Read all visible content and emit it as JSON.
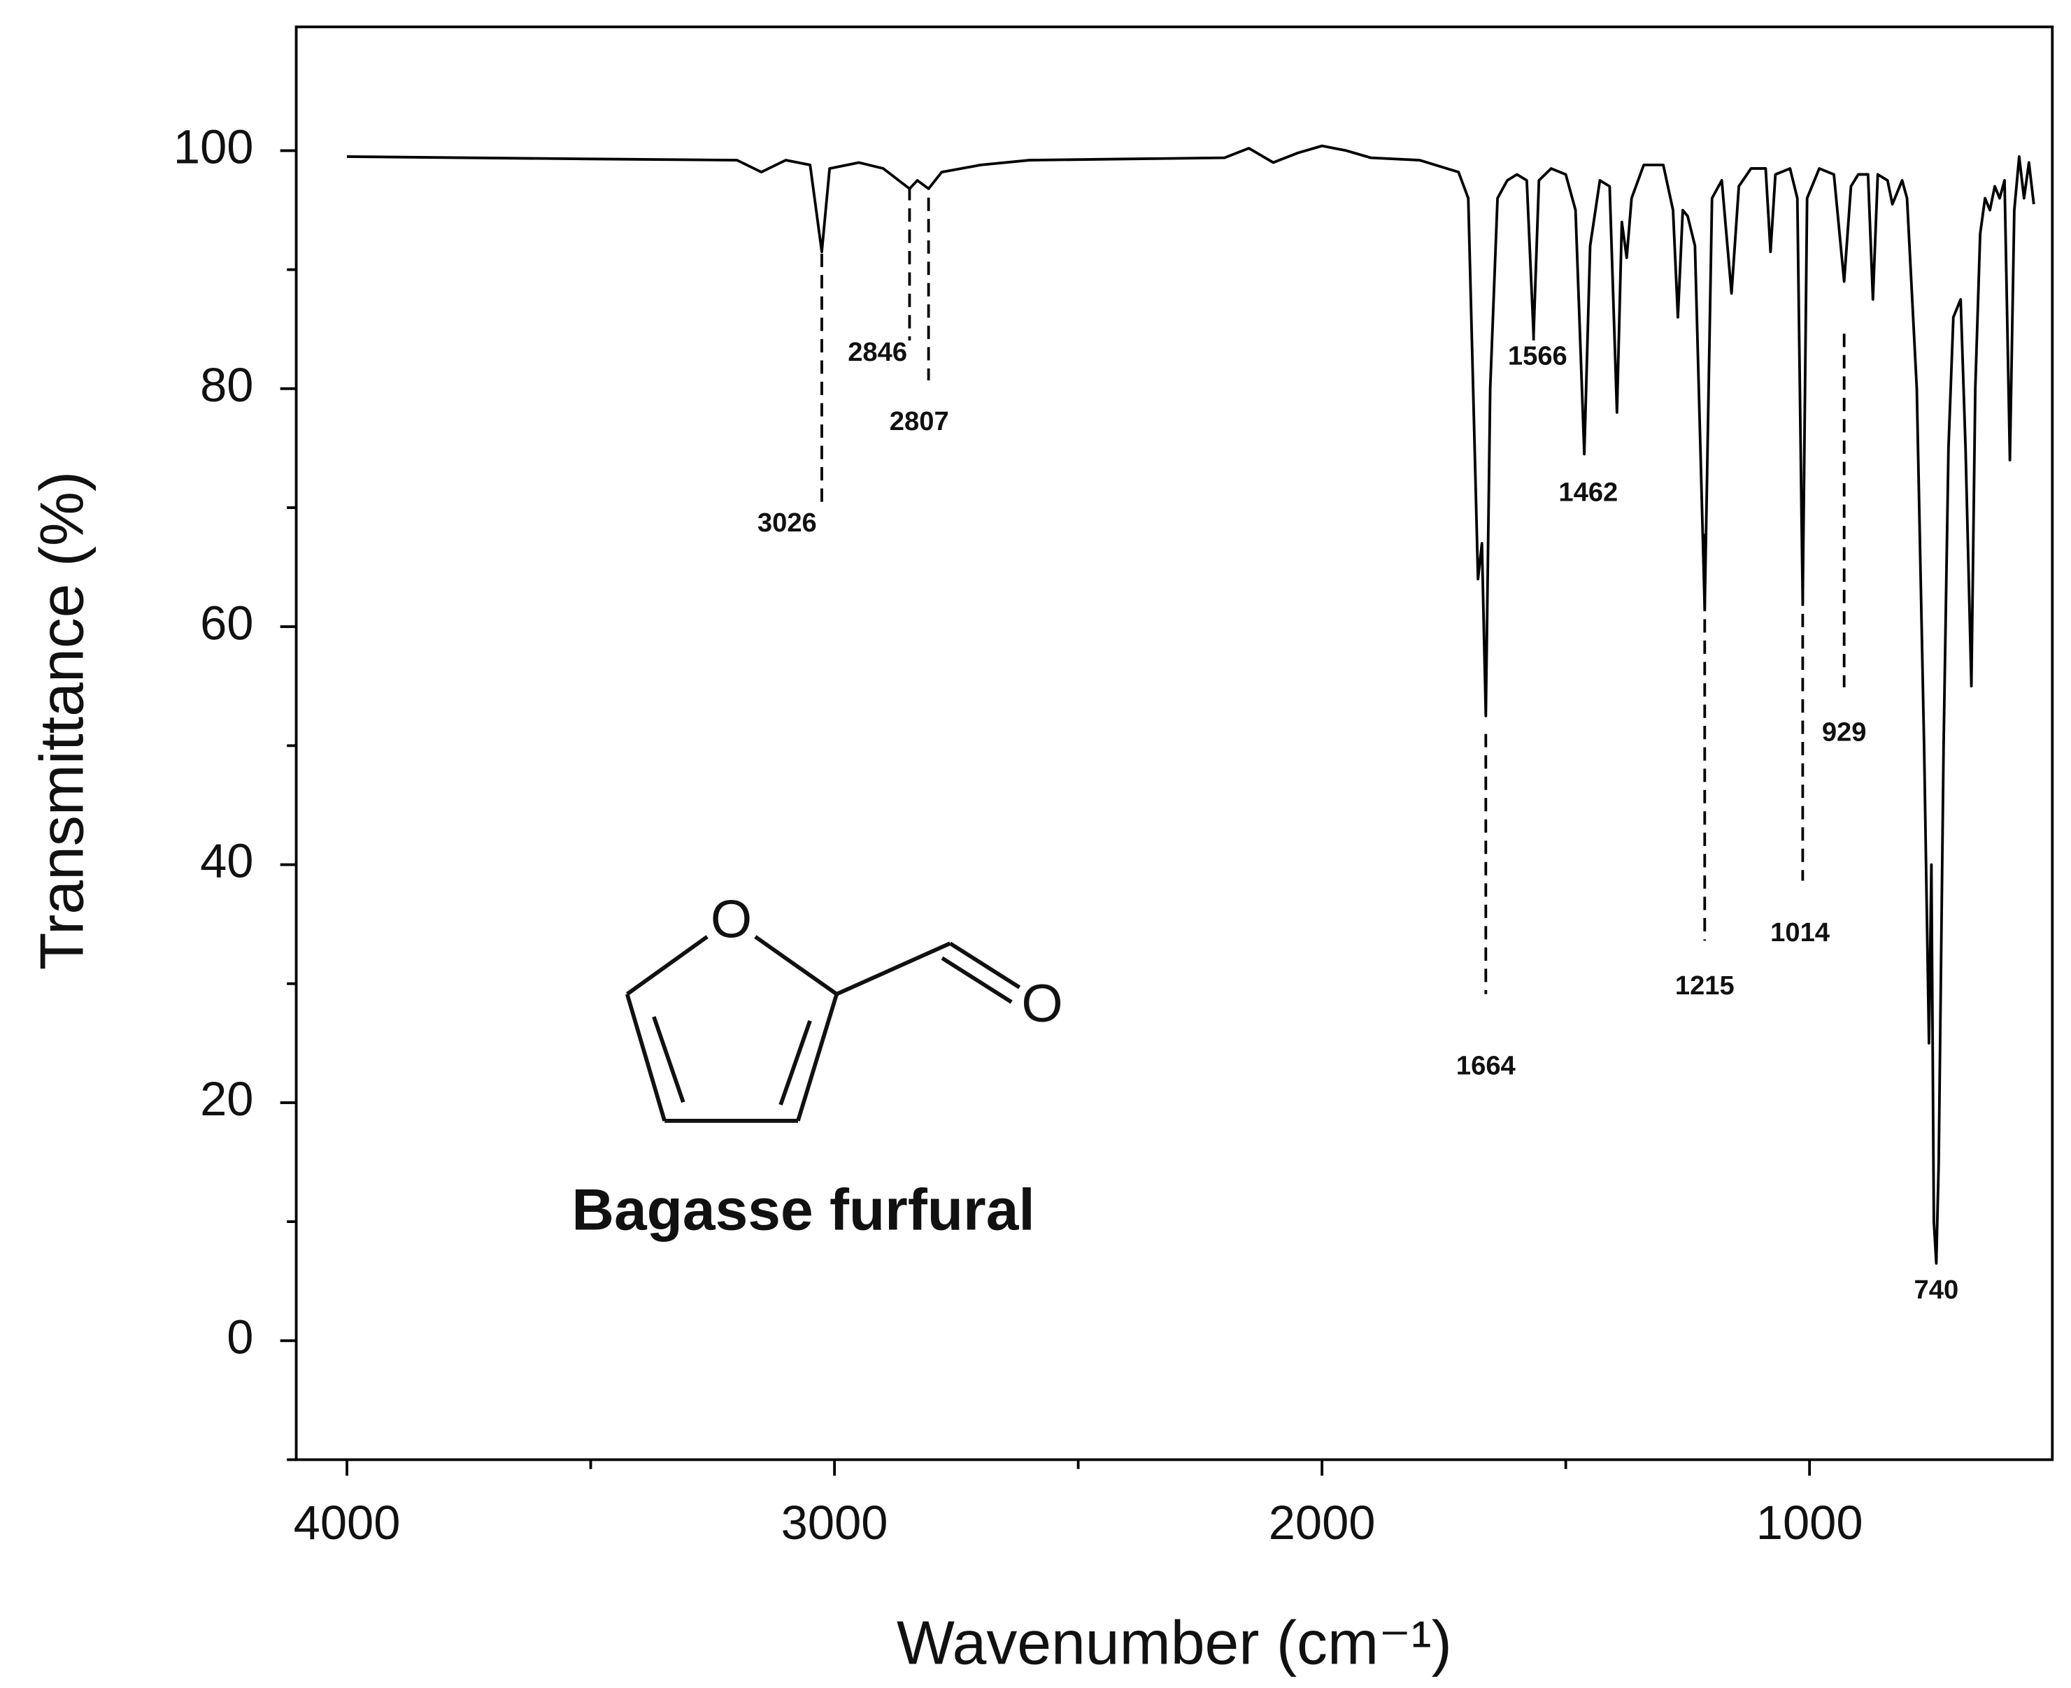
{
  "chart_data": {
    "type": "line",
    "xlabel": "Wavenumber (cm⁻¹)",
    "ylabel": "Transmittance (%)",
    "color": "#000000",
    "xlim": [
      4104,
      502
    ],
    "ylim": [
      -10,
      110.4
    ],
    "xticks": [
      4000,
      3000,
      2000,
      1000
    ],
    "yticks": [
      0,
      20,
      40,
      60,
      80,
      100
    ],
    "xticks_minor": [
      3500,
      2500,
      1500
    ],
    "yticks_minor": [
      -10,
      10,
      30,
      50,
      70,
      90
    ],
    "x": [
      4000,
      3500,
      3200,
      3150,
      3100,
      3050,
      3026,
      3010,
      2950,
      2900,
      2846,
      2830,
      2807,
      2780,
      2700,
      2600,
      2400,
      2200,
      2150,
      2100,
      2050,
      2000,
      1950,
      1900,
      1800,
      1760,
      1720,
      1700,
      1690,
      1680,
      1672,
      1664,
      1655,
      1640,
      1620,
      1600,
      1580,
      1566,
      1555,
      1530,
      1500,
      1480,
      1462,
      1450,
      1430,
      1410,
      1395,
      1385,
      1375,
      1365,
      1340,
      1300,
      1280,
      1270,
      1260,
      1250,
      1235,
      1215,
      1200,
      1180,
      1160,
      1145,
      1120,
      1090,
      1080,
      1070,
      1040,
      1025,
      1014,
      1005,
      980,
      950,
      929,
      915,
      900,
      880,
      870,
      860,
      840,
      830,
      810,
      800,
      780,
      765,
      755,
      750,
      745,
      740,
      735,
      725,
      715,
      705,
      690,
      680,
      668,
      660,
      650,
      640,
      630,
      620,
      610,
      600,
      589,
      580,
      570,
      560,
      550,
      540
    ],
    "values": [
      99.5,
      99.3,
      99.2,
      98.2,
      99.2,
      98.8,
      91.5,
      98.5,
      99,
      98.5,
      96.8,
      97.5,
      96.8,
      98.2,
      98.8,
      99.2,
      99.3,
      99.4,
      100.2,
      99,
      99.8,
      100.4,
      100,
      99.4,
      99.2,
      98.7,
      98.2,
      96,
      80,
      64,
      67,
      52.5,
      80,
      96,
      97.5,
      98,
      97.5,
      84.5,
      97.5,
      98.5,
      98,
      95,
      74.5,
      92,
      97.5,
      97,
      78,
      94,
      91,
      96,
      98.8,
      98.8,
      95,
      86,
      95,
      94.5,
      92,
      61.5,
      96,
      97.5,
      88,
      97,
      98.5,
      98.5,
      91.5,
      98,
      98.5,
      96,
      62,
      96,
      98.5,
      98,
      89,
      97,
      98,
      98,
      87.5,
      98,
      97.5,
      95.5,
      97.5,
      96,
      80,
      50,
      25,
      40,
      10,
      6.5,
      15,
      50,
      75,
      86,
      87.5,
      75,
      55,
      80,
      93,
      96,
      95,
      97,
      96,
      97.5,
      74,
      95,
      99.5,
      96,
      99,
      95.5
    ],
    "annotations": [
      {
        "text": "3026",
        "x": 3026
      },
      {
        "text": "2846",
        "x": 2846
      },
      {
        "text": "2807",
        "x": 2807
      },
      {
        "text": "1566",
        "x": 1566
      },
      {
        "text": "1462",
        "x": 1462
      },
      {
        "text": "1664",
        "x": 1664
      },
      {
        "text": "1215",
        "x": 1215
      },
      {
        "text": "1014",
        "x": 1014
      },
      {
        "text": "929",
        "x": 929
      },
      {
        "text": "740",
        "x": 740
      }
    ]
  },
  "structure": {
    "ring_atom": "O",
    "carbonyl_atom": "O",
    "caption": "Bagasse furfural"
  }
}
